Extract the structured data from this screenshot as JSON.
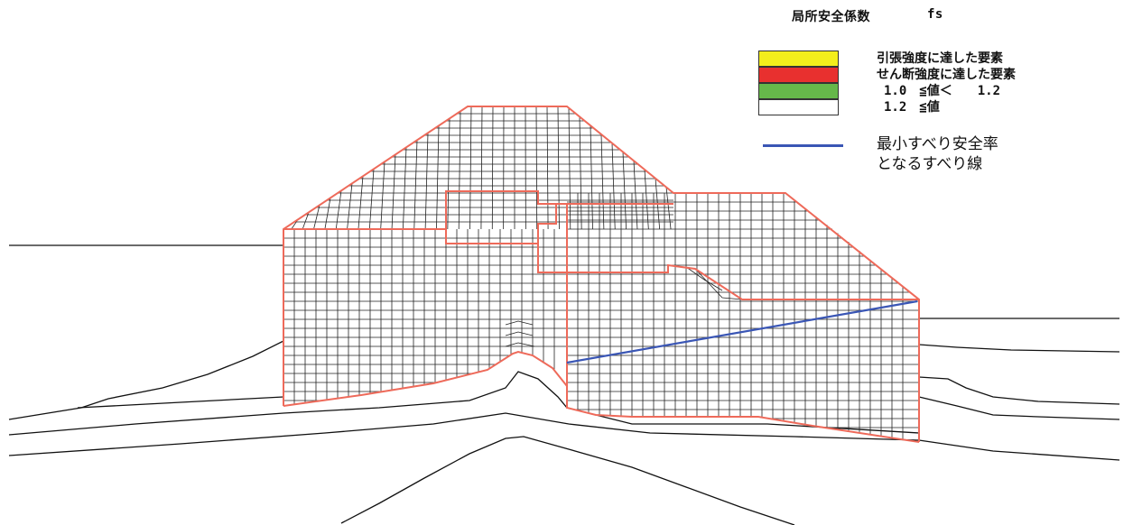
{
  "legend": {
    "title": "局所安全係数",
    "symbol": "fs",
    "items": [
      {
        "label": "引張強度に達した要素",
        "color": "#f3ee1c"
      },
      {
        "label": "せん断強度に達した要素",
        "color": "#e8302f"
      },
      {
        "label": "1.0　≦値＜　　1.2",
        "color": "#66b84a"
      },
      {
        "label": "1.2　≦値",
        "color": "#ffffff"
      }
    ],
    "slip": {
      "line1": "最小すべり安全率",
      "line2": "となるすべり線",
      "color": "#3a56b5"
    }
  },
  "colors": {
    "mesh": "#222222",
    "boundary": "#ee6a5a",
    "ground": "#111111"
  }
}
